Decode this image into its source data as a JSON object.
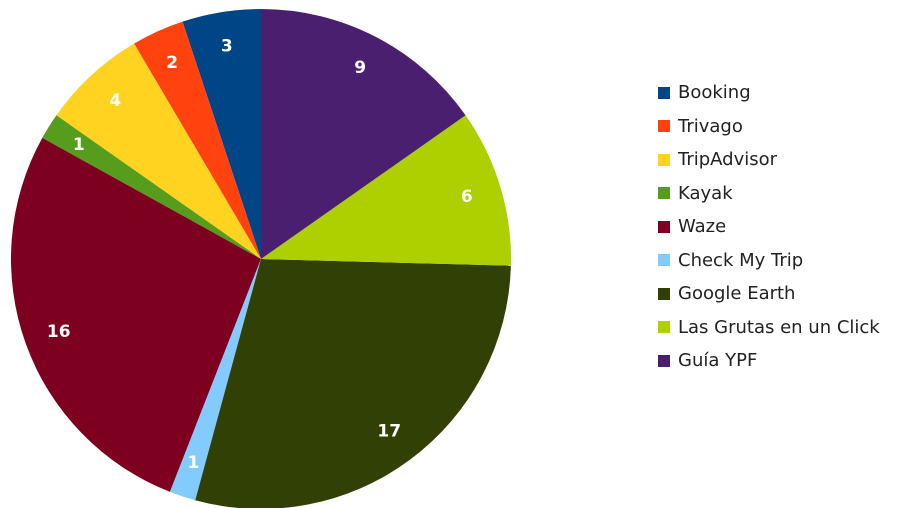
{
  "chart_data": {
    "type": "pie",
    "categories": [
      "Booking",
      "Trivago",
      "TripAdvisor",
      "Kayak",
      "Waze",
      "Check My Trip",
      "Google Earth",
      "Las Grutas en un Click",
      "Guía YPF"
    ],
    "values": [
      3,
      2,
      4,
      1,
      16,
      1,
      17,
      6,
      9
    ],
    "colors": [
      "#004586",
      "#ff420e",
      "#ffd320",
      "#579d1c",
      "#7e0021",
      "#83caff",
      "#314004",
      "#aecf00",
      "#4b1f6f"
    ],
    "data_labels": [
      "3",
      "2",
      "4",
      "1",
      "16",
      "1",
      "17",
      "6",
      "9"
    ],
    "legend_position": "right",
    "title": ""
  }
}
